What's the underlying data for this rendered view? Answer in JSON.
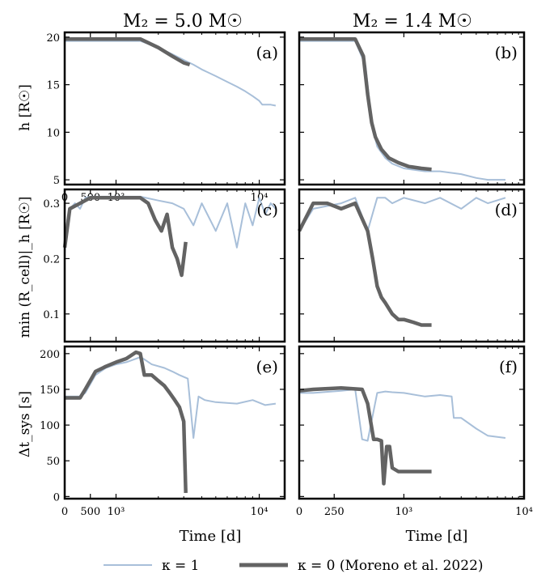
{
  "figure": {
    "col_titles": [
      "M₂ = 5.0 M☉",
      "M₂ = 1.4 M☉"
    ],
    "ylabels": [
      "h   [R☉]",
      "min (R_cell)|_h [R☉]",
      "Δt_sys   [s]"
    ],
    "xlabel": "Time    [d]"
  },
  "legend": {
    "entries": [
      {
        "label": "κ = 1",
        "color": "#a8bfd9"
      },
      {
        "label": "κ = 0 (Moreno et al. 2022)",
        "color": "#636363"
      }
    ]
  },
  "colors": {
    "kappa1": "#a8bfd9",
    "kappa0": "#636363"
  },
  "chart_data": [
    {
      "type": "line",
      "panel": "(a)",
      "xscale": "symlog",
      "xlim": [
        0,
        15000
      ],
      "ylim": [
        4.5,
        20.5
      ],
      "xticks": [
        "0",
        "500",
        "10³",
        "10⁴"
      ],
      "yticks": [
        "5",
        "10",
        "15",
        "20"
      ],
      "series": [
        {
          "name": "κ = 1",
          "x": [
            0,
            100,
            500,
            1000,
            1500,
            2000,
            2500,
            3000,
            3500,
            4000,
            5000,
            6000,
            7000,
            8000,
            9000,
            10000,
            10500,
            12000,
            13000
          ],
          "y": [
            19.6,
            19.6,
            19.6,
            19.6,
            19.6,
            18.9,
            18.2,
            17.6,
            17.1,
            16.6,
            15.9,
            15.3,
            14.8,
            14.3,
            13.8,
            13.3,
            12.9,
            12.9,
            12.8
          ]
        },
        {
          "name": "κ = 0 (Moreno et al. 2022)",
          "x": [
            0,
            100,
            500,
            1000,
            1500,
            2000,
            2500,
            3000,
            3300
          ],
          "y": [
            19.8,
            19.8,
            19.8,
            19.8,
            19.8,
            18.9,
            18.0,
            17.3,
            17.1
          ]
        }
      ]
    },
    {
      "type": "line",
      "panel": "(b)",
      "xscale": "symlog",
      "xlim": [
        0,
        10000
      ],
      "ylim": [
        4.5,
        20.5
      ],
      "xticks": [],
      "yticks": [],
      "series": [
        {
          "name": "κ = 1",
          "x": [
            0,
            100,
            300,
            400,
            480,
            520,
            560,
            600,
            700,
            800,
            1000,
            1500,
            2000,
            3000,
            4000,
            5000,
            7000
          ],
          "y": [
            19.6,
            19.6,
            19.6,
            19.6,
            17.0,
            13.0,
            10.0,
            8.5,
            7.3,
            6.7,
            6.2,
            5.9,
            5.9,
            5.6,
            5.2,
            5.0,
            5.0
          ]
        },
        {
          "name": "κ = 0 (Moreno et al. 2022)",
          "x": [
            0,
            100,
            300,
            400,
            460,
            500,
            540,
            580,
            650,
            750,
            900,
            1100,
            1400,
            1700
          ],
          "y": [
            19.8,
            19.8,
            19.8,
            19.8,
            18.0,
            14.0,
            11.0,
            9.5,
            8.2,
            7.3,
            6.8,
            6.4,
            6.2,
            6.1
          ]
        }
      ]
    },
    {
      "type": "line",
      "panel": "(c)",
      "xscale": "symlog",
      "xlim": [
        0,
        15000
      ],
      "ylim": [
        0.05,
        0.325
      ],
      "xticks": [],
      "yticks": [
        "0.1",
        "0.2",
        "0.3"
      ],
      "series": [
        {
          "name": "κ = 1",
          "x": [
            0,
            50,
            100,
            200,
            300,
            400,
            500,
            1000,
            1500,
            2000,
            2500,
            3000,
            3500,
            4000,
            5000,
            6000,
            7000,
            8000,
            9000,
            10000,
            11000,
            12000,
            13000
          ],
          "y": [
            0.21,
            0.27,
            0.29,
            0.3,
            0.29,
            0.31,
            0.312,
            0.312,
            0.312,
            0.305,
            0.3,
            0.29,
            0.26,
            0.3,
            0.25,
            0.3,
            0.22,
            0.3,
            0.26,
            0.31,
            0.28,
            0.3,
            0.29
          ]
        },
        {
          "name": "κ = 0 (Moreno et al. 2022)",
          "x": [
            0,
            100,
            300,
            500,
            800,
            1000,
            1500,
            1700,
            1900,
            2100,
            2300,
            2500,
            2700,
            2900,
            3100
          ],
          "y": [
            0.22,
            0.29,
            0.3,
            0.31,
            0.31,
            0.31,
            0.31,
            0.3,
            0.27,
            0.25,
            0.28,
            0.22,
            0.2,
            0.17,
            0.23
          ]
        }
      ]
    },
    {
      "type": "line",
      "panel": "(d)",
      "xscale": "symlog",
      "xlim": [
        0,
        10000
      ],
      "ylim": [
        0.05,
        0.325
      ],
      "xticks": [],
      "yticks": [],
      "series": [
        {
          "name": "κ = 1",
          "x": [
            0,
            100,
            300,
            400,
            500,
            600,
            700,
            800,
            1000,
            1500,
            2000,
            3000,
            4000,
            5000,
            7000
          ],
          "y": [
            0.25,
            0.29,
            0.3,
            0.31,
            0.25,
            0.31,
            0.31,
            0.3,
            0.31,
            0.3,
            0.31,
            0.29,
            0.31,
            0.3,
            0.31
          ]
        },
        {
          "name": "κ = 0 (Moreno et al. 2022)",
          "x": [
            0,
            100,
            200,
            300,
            400,
            500,
            550,
            600,
            650,
            700,
            800,
            900,
            1000,
            1200,
            1400,
            1700
          ],
          "y": [
            0.25,
            0.3,
            0.3,
            0.29,
            0.3,
            0.25,
            0.2,
            0.15,
            0.13,
            0.12,
            0.1,
            0.09,
            0.09,
            0.085,
            0.08,
            0.08
          ]
        }
      ]
    },
    {
      "type": "line",
      "panel": "(e)",
      "xscale": "symlog",
      "xlim": [
        0,
        15000
      ],
      "ylim": [
        -3,
        210
      ],
      "xticks": [
        "0",
        "500",
        "10³",
        "10⁴"
      ],
      "yticks": [
        "0",
        "50",
        "100",
        "150",
        "200"
      ],
      "series": [
        {
          "name": "κ = 1",
          "x": [
            0,
            300,
            400,
            600,
            800,
            1000,
            1200,
            1500,
            1600,
            1800,
            2200,
            2500,
            2800,
            3200,
            3500,
            3800,
            4200,
            5000,
            7000,
            9000,
            11000,
            13000
          ],
          "y": [
            140,
            140,
            145,
            170,
            180,
            185,
            188,
            195,
            192,
            185,
            180,
            175,
            170,
            165,
            82,
            140,
            135,
            132,
            130,
            135,
            128,
            130
          ]
        },
        {
          "name": "κ = 0 (Moreno et al. 2022)",
          "x": [
            0,
            300,
            400,
            600,
            800,
            1000,
            1200,
            1400,
            1500,
            1600,
            1800,
            2000,
            2200,
            2400,
            2600,
            2800,
            3000,
            3100
          ],
          "y": [
            138,
            138,
            150,
            175,
            182,
            188,
            193,
            202,
            200,
            170,
            170,
            162,
            155,
            145,
            135,
            125,
            105,
            5
          ]
        }
      ]
    },
    {
      "type": "line",
      "panel": "(f)",
      "xscale": "symlog",
      "xlim": [
        0,
        10000
      ],
      "ylim": [
        -3,
        210
      ],
      "xticks": [
        "0",
        "250",
        "10³",
        "10⁴"
      ],
      "yticks": [],
      "series": [
        {
          "name": "κ = 1",
          "x": [
            0,
            100,
            300,
            400,
            450,
            500,
            600,
            700,
            800,
            1000,
            1500,
            2000,
            2500,
            2600,
            3000,
            4000,
            5000,
            7000
          ],
          "y": [
            145,
            145,
            148,
            150,
            80,
            78,
            145,
            147,
            146,
            145,
            140,
            142,
            140,
            110,
            110,
            95,
            85,
            82
          ]
        },
        {
          "name": "κ = 0 (Moreno et al. 2022)",
          "x": [
            0,
            100,
            300,
            450,
            500,
            560,
            600,
            650,
            680,
            720,
            760,
            800,
            900,
            1000,
            1200,
            1500,
            1700
          ],
          "y": [
            148,
            150,
            152,
            150,
            130,
            80,
            80,
            78,
            18,
            70,
            70,
            40,
            35,
            35,
            35,
            35,
            35
          ]
        }
      ]
    }
  ]
}
